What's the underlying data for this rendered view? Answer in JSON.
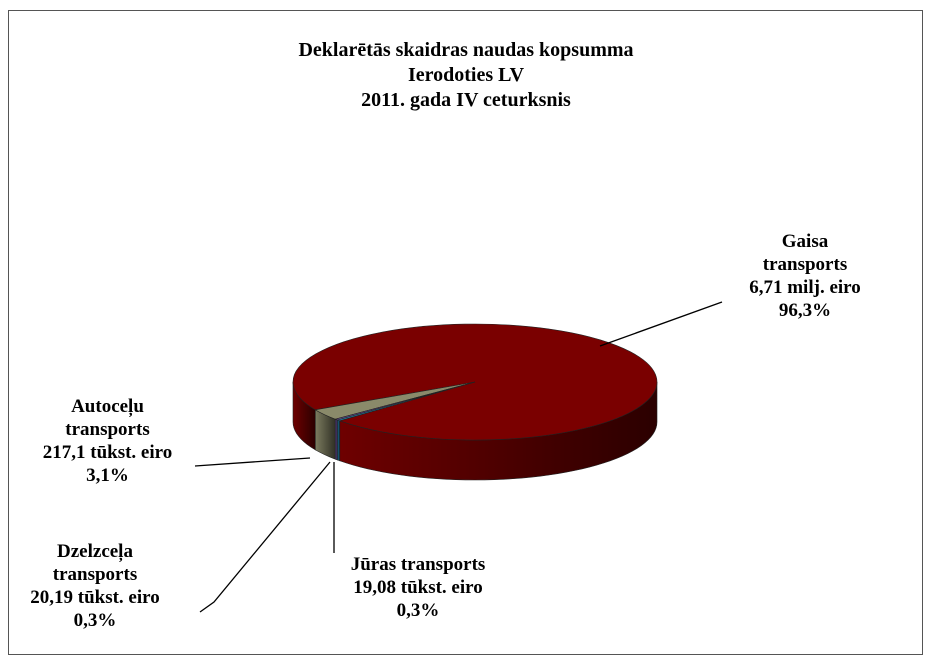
{
  "chart_data": {
    "type": "pie3d",
    "title": "Deklarētās skaidras naudas kopsumma",
    "subtitle": "Ierodoties LV",
    "period": "2011. gada IV ceturksnis",
    "categories": [
      "Gaisa transports",
      "Autoceļu transports",
      "Dzelzceļa transports",
      "Jūras transports"
    ],
    "values": [
      96.3,
      3.1,
      0.3,
      0.3
    ],
    "value_labels": [
      "96,3%",
      "3,1%",
      "0,3%",
      "0,3%"
    ],
    "amount_labels": [
      "6,71 milj. eiro",
      "217,1 tūkst. eiro",
      "20,19 tūkst. eiro",
      "19,08 tūkst. eiro"
    ],
    "colors": [
      "#7a0000",
      "#8a8a6a",
      "#6a4c96",
      "#1f7fa8"
    ]
  }
}
